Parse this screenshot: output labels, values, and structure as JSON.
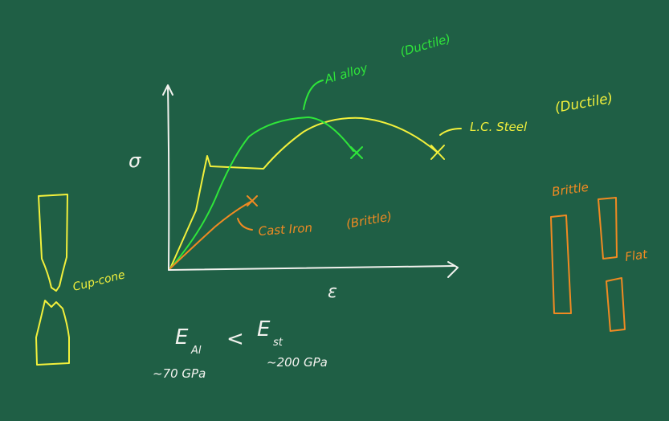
{
  "colors": {
    "background": "#1f5f45",
    "chalk_white": "#f2f2ee",
    "yellow": "#f2f03c",
    "green": "#2fe63a",
    "orange": "#f08a22"
  },
  "axes": {
    "y_label": "σ",
    "x_label": "ε"
  },
  "curves": {
    "al_alloy": {
      "label": "Al alloy",
      "note": "(Ductile)",
      "end_mark": "×"
    },
    "lc_steel": {
      "label": "L.C. Steel",
      "note": "(Ductile)",
      "end_mark": "×"
    },
    "cast_iron": {
      "label": "Cast Iron",
      "note": "(Brittle)",
      "end_mark": "×"
    }
  },
  "specimens": {
    "cup_cone_label": "Cup-cone",
    "brittle_label": "Brittle",
    "flat_label": "Flat"
  },
  "modulus": {
    "e_al": "E",
    "e_al_sub": "Al",
    "less_than": "<",
    "e_st": "E",
    "e_st_sub": "st",
    "al_value": "~70 GPa",
    "st_value": "~200 GPa"
  }
}
